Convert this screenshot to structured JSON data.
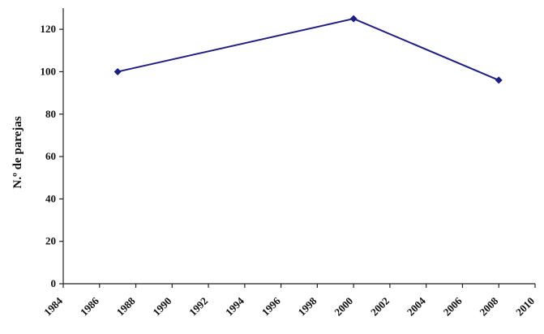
{
  "chart_data": {
    "type": "line",
    "title": "",
    "xlabel": "",
    "ylabel": "N.º de parejas",
    "xlim": [
      1984,
      2010
    ],
    "ylim": [
      0,
      130
    ],
    "x_ticks": [
      1984,
      1986,
      1988,
      1990,
      1992,
      1994,
      1996,
      1998,
      2000,
      2002,
      2004,
      2006,
      2008,
      2010
    ],
    "y_ticks": [
      0,
      20,
      40,
      60,
      80,
      100,
      120
    ],
    "grid": false,
    "legend": "none",
    "series": [
      {
        "color": "#1f1f80",
        "marker": "diamond",
        "x": [
          1987,
          2000,
          2008
        ],
        "y": [
          100,
          125,
          96
        ]
      }
    ]
  }
}
